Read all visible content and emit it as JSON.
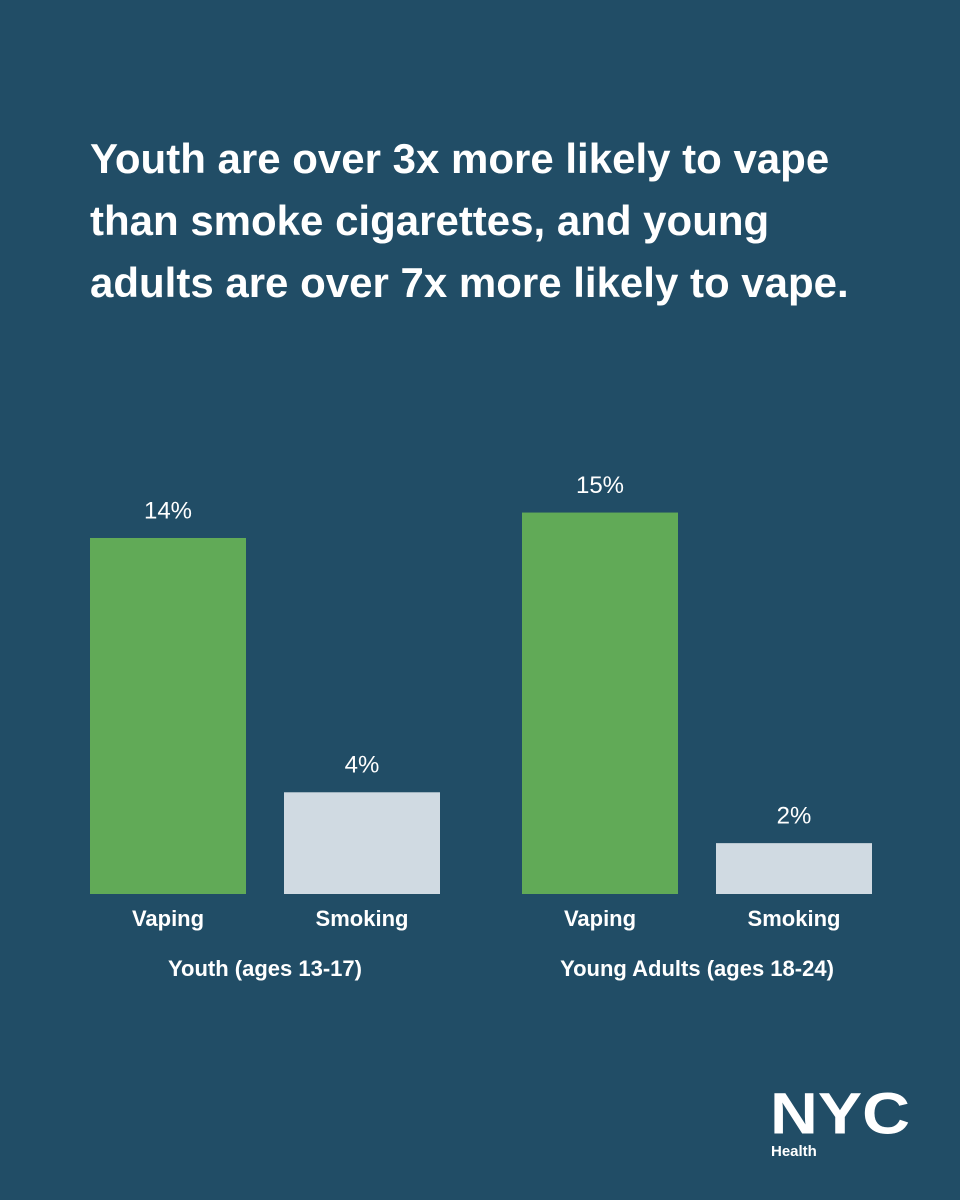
{
  "chart_data": {
    "type": "bar",
    "title": "Youth are over 3x more likely to vape than smoke cigarettes, and young adults are over 7x more likely to vape.",
    "categories": [
      "Youth (ages 13-17)",
      "Young Adults (ages 18-24)"
    ],
    "series": [
      {
        "name": "Vaping",
        "color": "#61aa57",
        "values": [
          14,
          15
        ],
        "value_labels": [
          "14%",
          "15%"
        ]
      },
      {
        "name": "Smoking",
        "color": "#d0dae2",
        "values": [
          4,
          2
        ],
        "value_labels": [
          "4%",
          "2%"
        ]
      }
    ]
  },
  "logo": {
    "name": "NYC",
    "subtitle": "Health"
  }
}
